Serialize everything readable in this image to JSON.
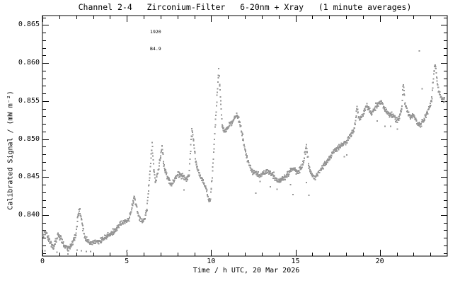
{
  "figure": {
    "colors": {
      "background": "#ffffff",
      "axis": "#000000",
      "text": "#000000",
      "points": "#969696"
    }
  },
  "chart_data": {
    "type": "scatter",
    "title": "Channel 2-4   Zirconium-Filter   6-20nm + Xray   (1 minute averages)",
    "xlabel": "Time / h UTC, 20 Mar 2026",
    "ylabel": "Calibrated Signal / (mW m⁻²)",
    "series_name": "Channel 2-4 Zirconium-Filter calibrated signal",
    "unit": "mW m-2",
    "cadence_minutes": 1,
    "xlim": [
      0,
      24
    ],
    "ylim": [
      0.8346,
      0.86625
    ],
    "xticks_major": [
      0,
      5,
      10,
      15,
      20
    ],
    "xtick_labels": [
      "0",
      "5",
      "10",
      "15",
      "20"
    ],
    "xtick_minor_step_hours": 1,
    "yticks_major": [
      0.84,
      0.845,
      0.85,
      0.855,
      0.86,
      0.865
    ],
    "ytick_labels": [
      "0.840",
      "0.845",
      "0.850",
      "0.855",
      "0.860",
      "0.865"
    ],
    "ytick_minor_step": 0.001,
    "grid": false,
    "legend": "none",
    "annotation": {
      "lines": [
        "1920",
        "B4.9"
      ],
      "x_hours": 6.38,
      "y_value": 0.8657
    },
    "noise_amplitude": 0.00036,
    "series": [
      [
        0.05,
        0.8374
      ],
      [
        0.2,
        0.8377
      ],
      [
        0.35,
        0.837
      ],
      [
        0.5,
        0.8362
      ],
      [
        0.65,
        0.8357
      ],
      [
        0.8,
        0.8366
      ],
      [
        0.95,
        0.8374
      ],
      [
        1.1,
        0.8369
      ],
      [
        1.25,
        0.836
      ],
      [
        1.4,
        0.8357
      ],
      [
        1.55,
        0.8356
      ],
      [
        1.7,
        0.836
      ],
      [
        1.85,
        0.8366
      ],
      [
        2.0,
        0.8377
      ],
      [
        2.1,
        0.8398
      ],
      [
        2.2,
        0.8407
      ],
      [
        2.3,
        0.8396
      ],
      [
        2.4,
        0.8383
      ],
      [
        2.5,
        0.8372
      ],
      [
        2.65,
        0.8366
      ],
      [
        2.8,
        0.8363
      ],
      [
        3.0,
        0.8364
      ],
      [
        3.2,
        0.8364
      ],
      [
        3.4,
        0.8366
      ],
      [
        3.6,
        0.8368
      ],
      [
        3.8,
        0.8372
      ],
      [
        4.0,
        0.8375
      ],
      [
        4.2,
        0.8377
      ],
      [
        4.4,
        0.8383
      ],
      [
        4.6,
        0.8388
      ],
      [
        4.8,
        0.8391
      ],
      [
        5.0,
        0.8392
      ],
      [
        5.15,
        0.8396
      ],
      [
        5.3,
        0.841
      ],
      [
        5.45,
        0.8423
      ],
      [
        5.6,
        0.8408
      ],
      [
        5.75,
        0.8396
      ],
      [
        5.9,
        0.8391
      ],
      [
        6.05,
        0.8394
      ],
      [
        6.2,
        0.8408
      ],
      [
        6.35,
        0.845
      ],
      [
        6.5,
        0.8494
      ],
      [
        6.6,
        0.8462
      ],
      [
        6.7,
        0.8443
      ],
      [
        6.85,
        0.8457
      ],
      [
        7.0,
        0.8477
      ],
      [
        7.1,
        0.849
      ],
      [
        7.2,
        0.8464
      ],
      [
        7.35,
        0.8453
      ],
      [
        7.5,
        0.8445
      ],
      [
        7.65,
        0.844
      ],
      [
        7.8,
        0.8446
      ],
      [
        7.95,
        0.8451
      ],
      [
        8.1,
        0.8454
      ],
      [
        8.3,
        0.8451
      ],
      [
        8.5,
        0.8448
      ],
      [
        8.7,
        0.8453
      ],
      [
        8.85,
        0.8512
      ],
      [
        8.95,
        0.8498
      ],
      [
        9.1,
        0.8468
      ],
      [
        9.25,
        0.8456
      ],
      [
        9.4,
        0.845
      ],
      [
        9.55,
        0.8444
      ],
      [
        9.7,
        0.8434
      ],
      [
        9.85,
        0.8423
      ],
      [
        9.95,
        0.8418
      ],
      [
        10.05,
        0.8445
      ],
      [
        10.2,
        0.85
      ],
      [
        10.35,
        0.8555
      ],
      [
        10.45,
        0.8592
      ],
      [
        10.55,
        0.8558
      ],
      [
        10.65,
        0.8517
      ],
      [
        10.8,
        0.8511
      ],
      [
        10.95,
        0.8513
      ],
      [
        11.1,
        0.8519
      ],
      [
        11.25,
        0.8522
      ],
      [
        11.4,
        0.8527
      ],
      [
        11.55,
        0.8532
      ],
      [
        11.7,
        0.8521
      ],
      [
        11.85,
        0.8506
      ],
      [
        12.0,
        0.8489
      ],
      [
        12.15,
        0.8472
      ],
      [
        12.3,
        0.8463
      ],
      [
        12.5,
        0.8456
      ],
      [
        12.7,
        0.8455
      ],
      [
        12.9,
        0.8451
      ],
      [
        13.1,
        0.8455
      ],
      [
        13.3,
        0.8458
      ],
      [
        13.5,
        0.8455
      ],
      [
        13.7,
        0.8452
      ],
      [
        13.9,
        0.8446
      ],
      [
        14.1,
        0.8444
      ],
      [
        14.3,
        0.8449
      ],
      [
        14.5,
        0.8453
      ],
      [
        14.7,
        0.8459
      ],
      [
        14.9,
        0.8461
      ],
      [
        15.1,
        0.8457
      ],
      [
        15.3,
        0.846
      ],
      [
        15.45,
        0.8468
      ],
      [
        15.55,
        0.848
      ],
      [
        15.65,
        0.8491
      ],
      [
        15.8,
        0.8463
      ],
      [
        15.95,
        0.8455
      ],
      [
        16.1,
        0.8449
      ],
      [
        16.25,
        0.8452
      ],
      [
        16.4,
        0.8457
      ],
      [
        16.6,
        0.8464
      ],
      [
        16.8,
        0.8469
      ],
      [
        17.0,
        0.8475
      ],
      [
        17.2,
        0.8482
      ],
      [
        17.4,
        0.8486
      ],
      [
        17.6,
        0.8489
      ],
      [
        17.8,
        0.8493
      ],
      [
        18.0,
        0.8496
      ],
      [
        18.15,
        0.85
      ],
      [
        18.3,
        0.8506
      ],
      [
        18.45,
        0.8511
      ],
      [
        18.55,
        0.852
      ],
      [
        18.65,
        0.8543
      ],
      [
        18.75,
        0.8527
      ],
      [
        18.9,
        0.8528
      ],
      [
        19.05,
        0.8535
      ],
      [
        19.2,
        0.8544
      ],
      [
        19.35,
        0.8539
      ],
      [
        19.5,
        0.8533
      ],
      [
        19.65,
        0.8537
      ],
      [
        19.8,
        0.8544
      ],
      [
        19.95,
        0.8547
      ],
      [
        20.1,
        0.8549
      ],
      [
        20.25,
        0.8541
      ],
      [
        20.4,
        0.8536
      ],
      [
        20.55,
        0.8531
      ],
      [
        20.7,
        0.8534
      ],
      [
        20.85,
        0.853
      ],
      [
        21.0,
        0.8525
      ],
      [
        21.15,
        0.8526
      ],
      [
        21.3,
        0.8541
      ],
      [
        21.4,
        0.8574
      ],
      [
        21.5,
        0.8545
      ],
      [
        21.65,
        0.8535
      ],
      [
        21.8,
        0.853
      ],
      [
        21.95,
        0.8531
      ],
      [
        22.1,
        0.8527
      ],
      [
        22.25,
        0.8521
      ],
      [
        22.4,
        0.8518
      ],
      [
        22.55,
        0.8523
      ],
      [
        22.7,
        0.8529
      ],
      [
        22.85,
        0.8536
      ],
      [
        23.0,
        0.8545
      ],
      [
        23.1,
        0.8556
      ],
      [
        23.2,
        0.8588
      ],
      [
        23.3,
        0.8597
      ],
      [
        23.4,
        0.8577
      ],
      [
        23.5,
        0.8563
      ],
      [
        23.6,
        0.8556
      ],
      [
        23.7,
        0.8552
      ],
      [
        23.85,
        0.8551
      ]
    ],
    "outliers": [
      [
        0.15,
        0.8353
      ],
      [
        0.85,
        0.8351
      ],
      [
        1.5,
        0.8349
      ],
      [
        2.05,
        0.8354
      ],
      [
        2.3,
        0.8353
      ],
      [
        2.6,
        0.8352
      ],
      [
        2.85,
        0.8352
      ],
      [
        5.0,
        0.8352
      ],
      [
        8.4,
        0.8433
      ],
      [
        12.65,
        0.8429
      ],
      [
        12.9,
        0.8444
      ],
      [
        13.5,
        0.8437
      ],
      [
        13.9,
        0.8434
      ],
      [
        14.7,
        0.844
      ],
      [
        14.85,
        0.8427
      ],
      [
        15.65,
        0.8443
      ],
      [
        15.8,
        0.8426
      ],
      [
        17.9,
        0.8477
      ],
      [
        18.05,
        0.8479
      ],
      [
        19.85,
        0.8524
      ],
      [
        20.3,
        0.8517
      ],
      [
        20.65,
        0.8517
      ],
      [
        21.05,
        0.8513
      ],
      [
        22.35,
        0.8616
      ],
      [
        22.5,
        0.8566
      ]
    ]
  }
}
